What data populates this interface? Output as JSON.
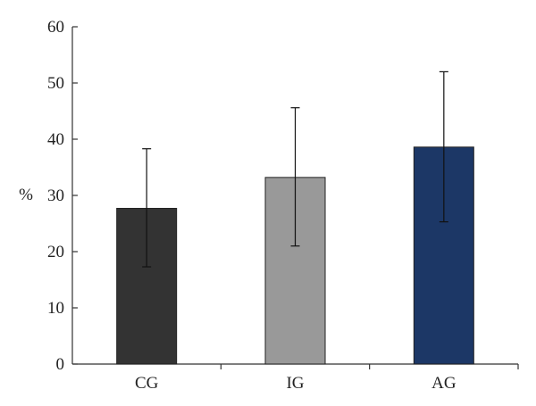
{
  "chart_data": {
    "type": "bar",
    "categories": [
      "CG",
      "IG",
      "AG"
    ],
    "values": [
      27.7,
      33.2,
      38.6
    ],
    "errors": [
      {
        "low": 17.3,
        "high": 38.3
      },
      {
        "low": 21.0,
        "high": 45.6
      },
      {
        "low": 25.3,
        "high": 52.0
      }
    ],
    "colors": [
      "#333333",
      "#999999",
      "#1c3766"
    ],
    "ylabel": "%",
    "xlabel": "",
    "title": "",
    "ylim": [
      0,
      60
    ],
    "yticks": [
      0,
      10,
      20,
      30,
      40,
      50,
      60
    ],
    "grid": false,
    "legend": false
  }
}
